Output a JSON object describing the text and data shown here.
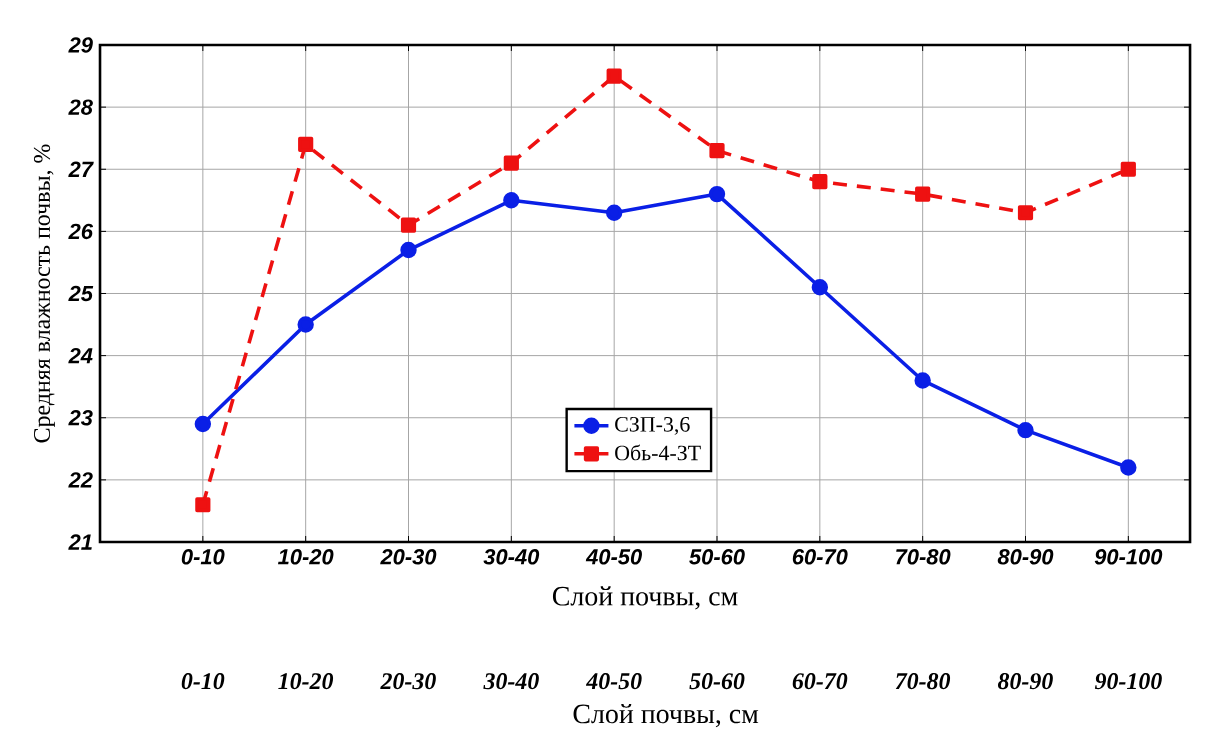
{
  "chart_data": {
    "type": "line",
    "xlabel": "Слой почвы, см",
    "ylabel": "Средняя влажность почвы, %",
    "categories": [
      "0-10",
      "10-20",
      "20-30",
      "30-40",
      "40-50",
      "50-60",
      "60-70",
      "70-80",
      "80-90",
      "90-100"
    ],
    "ylim": [
      21,
      29
    ],
    "yticks": [
      21,
      22,
      23,
      24,
      25,
      26,
      27,
      28,
      29
    ],
    "grid": true,
    "legend": "bottom",
    "series": [
      {
        "name": "СЗП-3,6",
        "color": "#0a1fe6",
        "marker": "circle",
        "line_style": "solid",
        "values": [
          22.9,
          24.5,
          25.7,
          26.5,
          26.3,
          26.6,
          25.1,
          23.6,
          22.8,
          22.2
        ]
      },
      {
        "name": "Обь-4-ЗТ",
        "color": "#ee1111",
        "marker": "square",
        "line_style": "dashed",
        "values": [
          21.6,
          27.4,
          26.1,
          27.1,
          28.5,
          27.3,
          26.8,
          26.6,
          26.3,
          27.0
        ]
      }
    ],
    "annotations": [
      "0-10",
      "10-20",
      "20-30",
      "30-40",
      "40-50",
      "50-60",
      "60-70",
      "70-80",
      "80-90",
      "90-100",
      "Слой почвы, см"
    ]
  }
}
